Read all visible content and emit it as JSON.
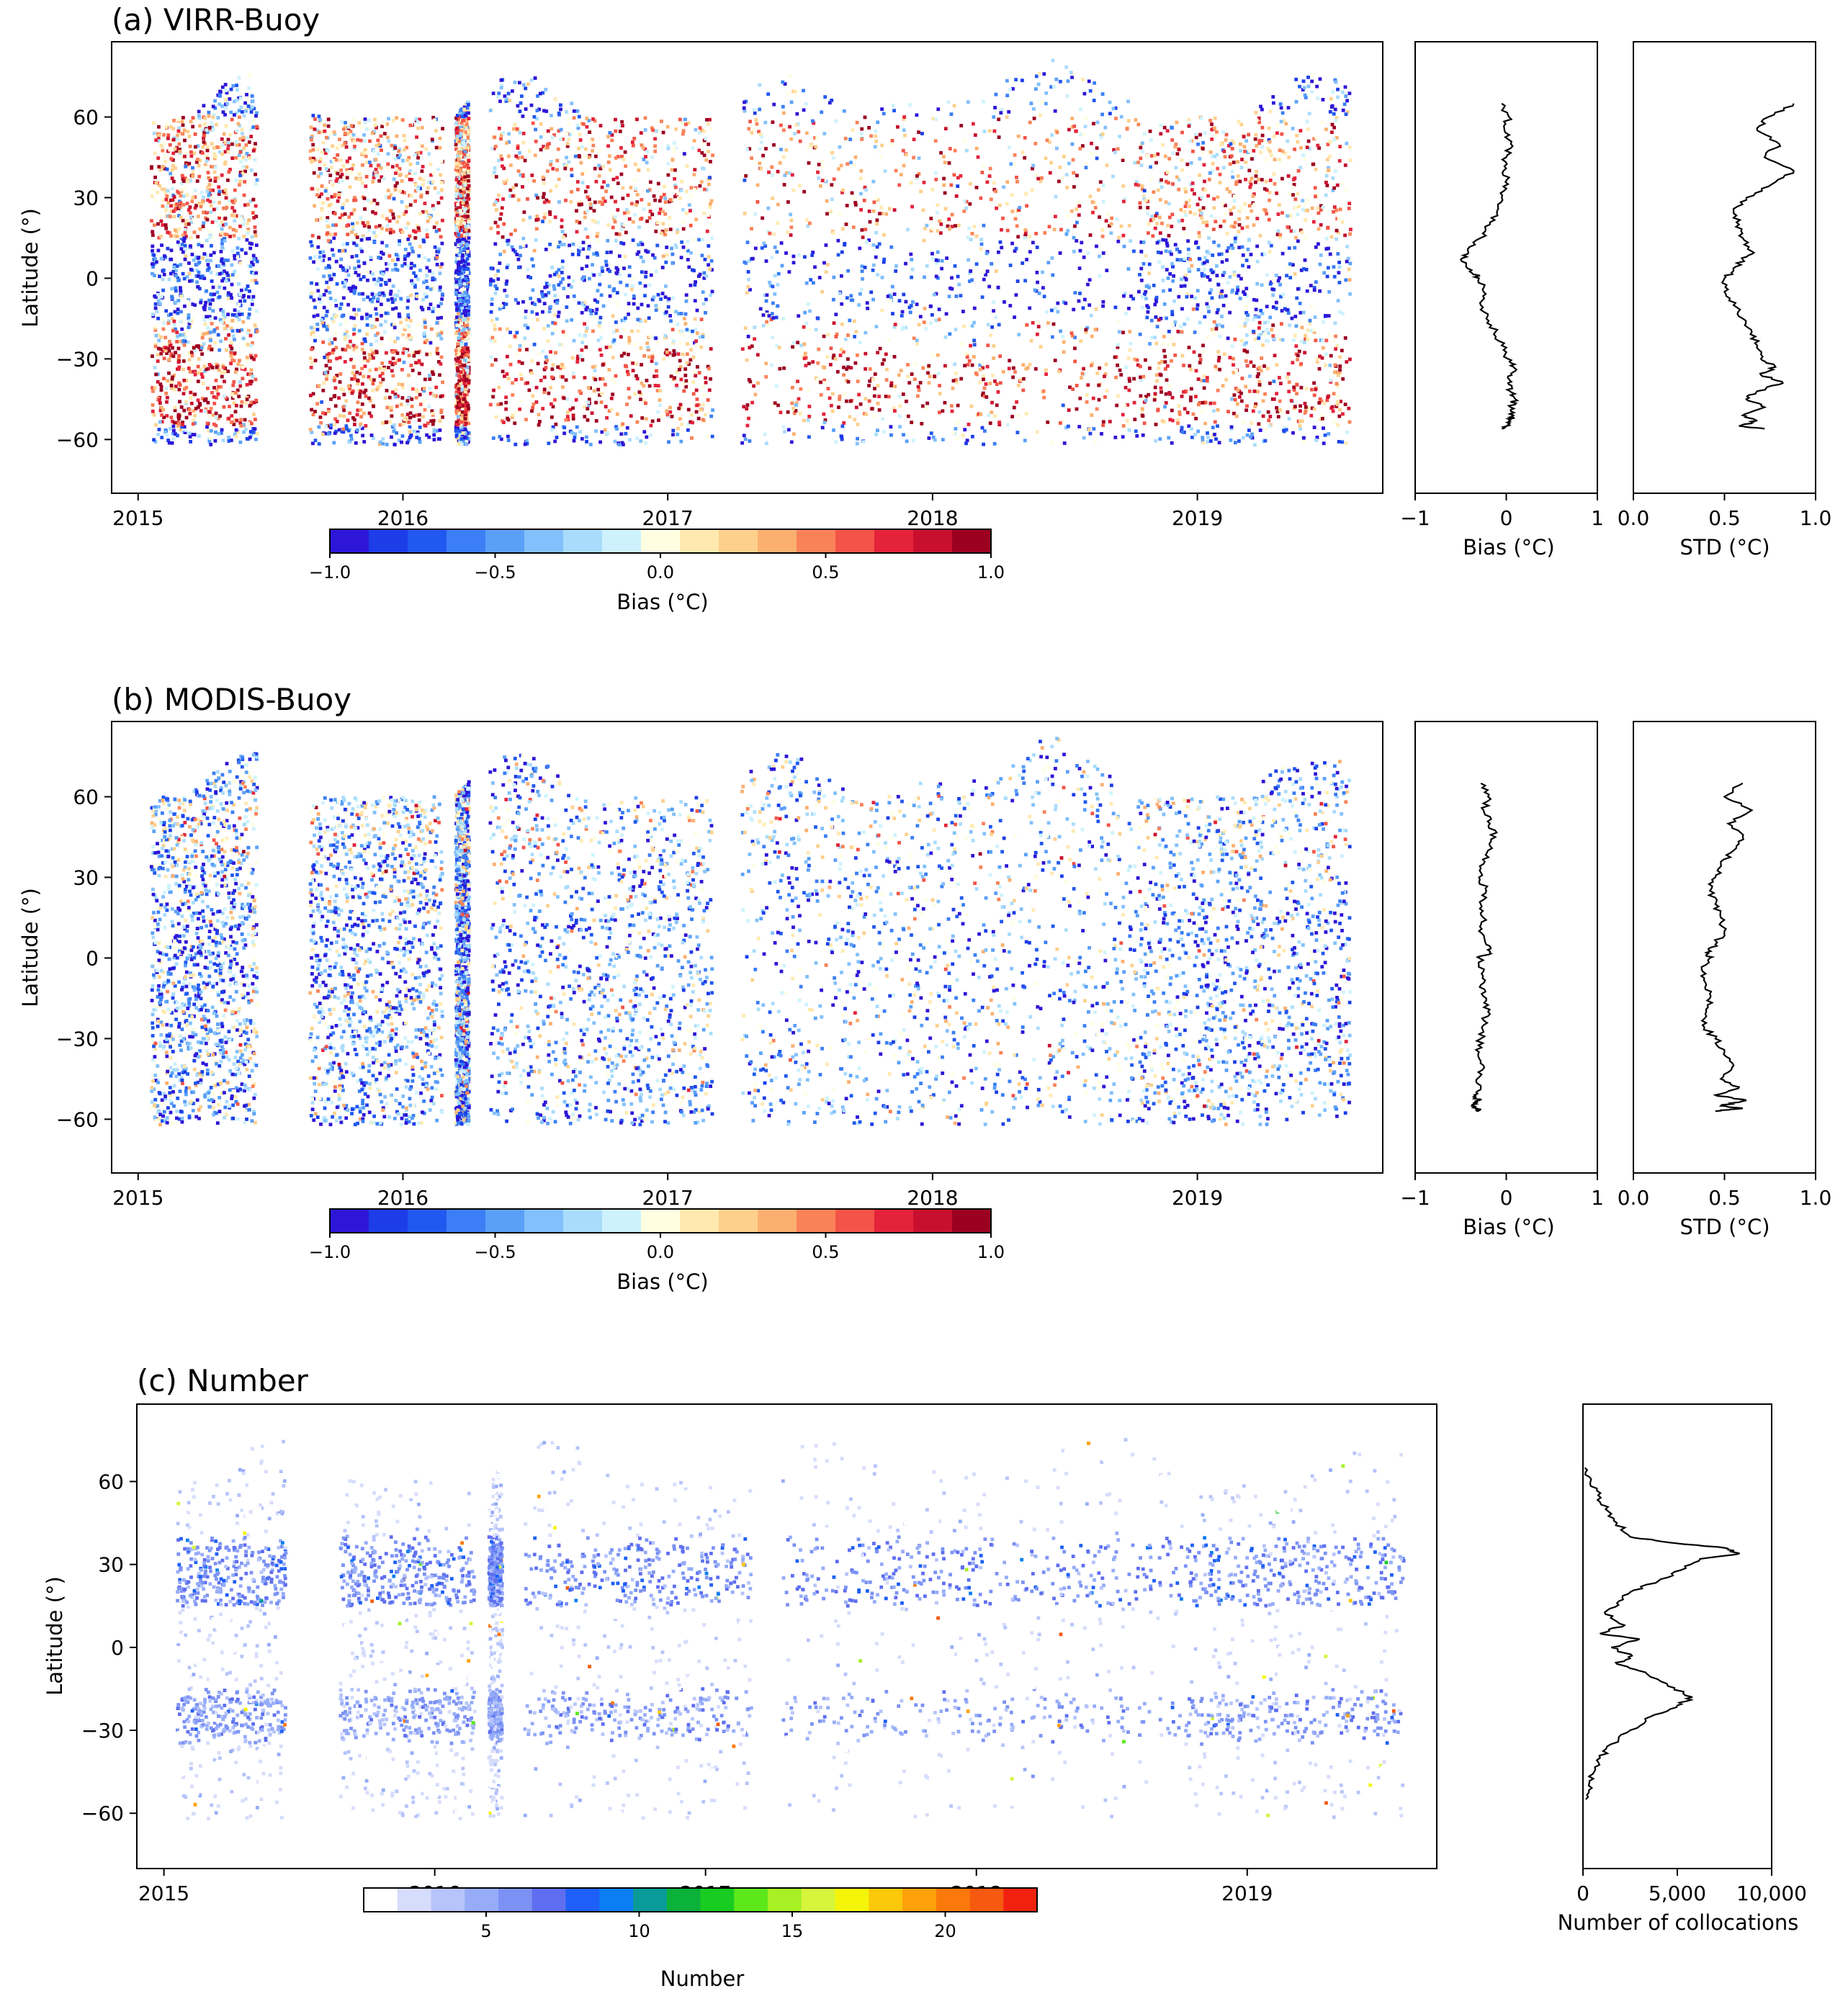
{
  "chart_data": [
    {
      "type": "scatter",
      "panel": "a",
      "title": "(a) VIRR-Buoy",
      "xlabel": "",
      "ylabel": "Latitude (°)",
      "xlim": [
        2014.9,
        2019.7
      ],
      "ylim": [
        -80,
        88
      ],
      "x_ticks": [
        2015,
        2016,
        2017,
        2018,
        2019
      ],
      "x_tick_labels": [
        "2015",
        "2016",
        "2017",
        "2018",
        "2019"
      ],
      "y_ticks": [
        60,
        30,
        0,
        -30,
        -60
      ],
      "y_tick_labels": [
        "60",
        "30",
        "0",
        "−30",
        "−60"
      ],
      "colorbar": {
        "label": "Bias (°C)",
        "range": [
          -1.0,
          1.0
        ],
        "ticks": [
          -1.0,
          -0.5,
          0.0,
          0.5,
          1.0
        ],
        "tick_labels": [
          "−1.0",
          "−0.5",
          "0.0",
          "0.5",
          "1.0"
        ],
        "colors": [
          "#2d16d8",
          "#1c3de8",
          "#2158ef",
          "#3b7ef5",
          "#5aa0f8",
          "#82c0fb",
          "#a9dcfc",
          "#cdf2fd",
          "#fffee2",
          "#ffe9ae",
          "#fdd08c",
          "#fbb070",
          "#f98258",
          "#f35447",
          "#e4233a",
          "#c8102e",
          "#9c0020"
        ]
      },
      "data_extent": {
        "coverage_periods": [
          [
            2015.05,
            2015.45
          ],
          [
            2015.65,
            2016.15
          ],
          [
            2016.2,
            2016.25
          ],
          [
            2016.33,
            2017.17
          ],
          [
            2017.28,
            2018.78
          ],
          [
            2018.78,
            2019.58
          ]
        ],
        "lat_range": [
          -62,
          80
        ],
        "bias_by_band": [
          {
            "lat": [
              40,
              60
            ],
            "bias": 0.3
          },
          {
            "lat": [
              15,
              40
            ],
            "bias": 0.4
          },
          {
            "lat": [
              -15,
              15
            ],
            "bias": -0.7
          },
          {
            "lat": [
              -25,
              -15
            ],
            "bias": 0.0
          },
          {
            "lat": [
              -55,
              -25
            ],
            "bias": 0.6
          },
          {
            "lat": [
              60,
              80
            ],
            "bias": -0.6
          }
        ]
      }
    },
    {
      "type": "line",
      "panel": "a-bias",
      "xlabel": "Bias (°C)",
      "xlim": [
        -1,
        1
      ],
      "x_ticks": [
        -1,
        0,
        1
      ],
      "x_tick_labels": [
        "−1",
        "0",
        "1"
      ],
      "ylim": [
        -80,
        88
      ],
      "x": [
        -0.05,
        0.03,
        -0.02,
        0.05,
        0.0,
        -0.03,
        0.02,
        -0.05,
        -0.1,
        -0.18,
        -0.28,
        -0.42,
        -0.5,
        -0.38,
        -0.3,
        -0.25,
        -0.28,
        -0.22,
        -0.12,
        -0.05,
        0.02,
        0.08,
        0.06,
        0.02,
        0.04,
        0.1,
        0.05,
        0.08,
        0.03,
        0.0,
        -0.05
      ],
      "y": [
        65,
        60,
        55,
        50,
        45,
        40,
        35,
        30,
        25,
        20,
        15,
        10,
        7,
        3,
        0,
        -5,
        -10,
        -15,
        -20,
        -25,
        -30,
        -33,
        -36,
        -39,
        -42,
        -45,
        -48,
        -51,
        -53,
        -55,
        -56
      ]
    },
    {
      "type": "line",
      "panel": "a-std",
      "xlabel": "STD (°C)",
      "xlim": [
        0,
        1
      ],
      "x_ticks": [
        0.0,
        0.5,
        1.0
      ],
      "x_tick_labels": [
        "0.0",
        "0.5",
        "1.0"
      ],
      "ylim": [
        -80,
        88
      ],
      "x": [
        0.88,
        0.74,
        0.68,
        0.8,
        0.72,
        0.88,
        0.76,
        0.62,
        0.55,
        0.58,
        0.6,
        0.65,
        0.6,
        0.55,
        0.5,
        0.5,
        0.55,
        0.6,
        0.65,
        0.68,
        0.7,
        0.78,
        0.7,
        0.82,
        0.68,
        0.62,
        0.72,
        0.6,
        0.68,
        0.58,
        0.72
      ],
      "y": [
        65,
        60,
        55,
        50,
        45,
        40,
        35,
        30,
        25,
        20,
        15,
        10,
        7,
        3,
        0,
        -5,
        -10,
        -15,
        -20,
        -25,
        -30,
        -33,
        -36,
        -39,
        -42,
        -45,
        -48,
        -51,
        -53,
        -55,
        -56
      ]
    },
    {
      "type": "scatter",
      "panel": "b",
      "title": "(b) MODIS-Buoy",
      "xlabel": "",
      "ylabel": "Latitude (°)",
      "xlim": [
        2014.9,
        2019.7
      ],
      "ylim": [
        -80,
        88
      ],
      "x_ticks": [
        2015,
        2016,
        2017,
        2018,
        2019
      ],
      "x_tick_labels": [
        "2015",
        "2016",
        "2017",
        "2018",
        "2019"
      ],
      "y_ticks": [
        60,
        30,
        0,
        -30,
        -60
      ],
      "y_tick_labels": [
        "60",
        "30",
        "0",
        "−30",
        "−60"
      ],
      "colorbar": {
        "label": "Bias (°C)",
        "range": [
          -1.0,
          1.0
        ],
        "ticks": [
          -1.0,
          -0.5,
          0.0,
          0.5,
          1.0
        ],
        "tick_labels": [
          "−1.0",
          "−0.5",
          "0.0",
          "0.5",
          "1.0"
        ],
        "colors": [
          "#2d16d8",
          "#1c3de8",
          "#2158ef",
          "#3b7ef5",
          "#5aa0f8",
          "#82c0fb",
          "#a9dcfc",
          "#cdf2fd",
          "#fffee2",
          "#ffe9ae",
          "#fdd08c",
          "#fbb070",
          "#f98258",
          "#f35447",
          "#e4233a",
          "#c8102e",
          "#9c0020"
        ]
      },
      "data_extent": {
        "coverage_periods": [
          [
            2015.05,
            2015.45
          ],
          [
            2015.65,
            2016.15
          ],
          [
            2016.2,
            2016.25
          ],
          [
            2016.33,
            2017.17
          ],
          [
            2017.28,
            2018.78
          ],
          [
            2018.78,
            2019.58
          ]
        ],
        "lat_range": [
          -62,
          80
        ],
        "bias_by_band": [
          {
            "lat": [
              40,
              60
            ],
            "bias": -0.2
          },
          {
            "lat": [
              15,
              40
            ],
            "bias": -0.4
          },
          {
            "lat": [
              -15,
              15
            ],
            "bias": -0.5
          },
          {
            "lat": [
              -55,
              -15
            ],
            "bias": -0.35
          },
          {
            "lat": [
              60,
              80
            ],
            "bias": -0.5
          }
        ]
      }
    },
    {
      "type": "line",
      "panel": "b-bias",
      "xlabel": "Bias (°C)",
      "xlim": [
        -1,
        1
      ],
      "x_ticks": [
        -1,
        0,
        1
      ],
      "x_tick_labels": [
        "−1",
        "0",
        "1"
      ],
      "ylim": [
        -80,
        88
      ],
      "x": [
        -0.28,
        -0.2,
        -0.25,
        -0.18,
        -0.12,
        -0.2,
        -0.25,
        -0.3,
        -0.22,
        -0.28,
        -0.25,
        -0.3,
        -0.22,
        -0.18,
        -0.3,
        -0.25,
        -0.28,
        -0.22,
        -0.2,
        -0.25,
        -0.28,
        -0.3,
        -0.25,
        -0.32,
        -0.28,
        -0.35,
        -0.3,
        -0.38,
        -0.32,
        -0.3
      ],
      "y": [
        65,
        60,
        55,
        50,
        45,
        40,
        35,
        30,
        25,
        20,
        15,
        10,
        5,
        2,
        0,
        -5,
        -10,
        -15,
        -20,
        -25,
        -30,
        -35,
        -40,
        -45,
        -48,
        -51,
        -53,
        -55,
        -56,
        -57
      ]
    },
    {
      "type": "line",
      "panel": "b-std",
      "xlabel": "STD (°C)",
      "xlim": [
        0,
        1
      ],
      "x_ticks": [
        0.0,
        0.5,
        1.0
      ],
      "x_tick_labels": [
        "0.0",
        "0.5",
        "1.0"
      ],
      "ylim": [
        -80,
        88
      ],
      "x": [
        0.6,
        0.5,
        0.65,
        0.52,
        0.6,
        0.55,
        0.48,
        0.45,
        0.42,
        0.45,
        0.48,
        0.5,
        0.45,
        0.4,
        0.42,
        0.38,
        0.4,
        0.42,
        0.4,
        0.38,
        0.45,
        0.5,
        0.55,
        0.48,
        0.58,
        0.45,
        0.62,
        0.48,
        0.6,
        0.45
      ],
      "y": [
        65,
        60,
        55,
        50,
        45,
        40,
        35,
        30,
        25,
        20,
        15,
        10,
        5,
        2,
        0,
        -5,
        -10,
        -15,
        -20,
        -25,
        -30,
        -35,
        -40,
        -45,
        -48,
        -51,
        -53,
        -55,
        -56,
        -57
      ]
    },
    {
      "type": "scatter",
      "panel": "c",
      "title": "(c) Number",
      "xlabel": "",
      "ylabel": "Latitude (°)",
      "xlim": [
        2014.9,
        2019.7
      ],
      "ylim": [
        -80,
        88
      ],
      "x_ticks": [
        2015,
        2016,
        2017,
        2018,
        2019
      ],
      "x_tick_labels": [
        "2015",
        "2016",
        "2017",
        "2018",
        "2019"
      ],
      "y_ticks": [
        60,
        30,
        0,
        -30,
        -60
      ],
      "y_tick_labels": [
        "60",
        "30",
        "0",
        "−30",
        "−60"
      ],
      "colorbar": {
        "label": "Number",
        "range": [
          1,
          23
        ],
        "ticks": [
          5,
          10,
          15,
          20
        ],
        "tick_labels": [
          "5",
          "10",
          "15",
          "20"
        ],
        "colors": [
          "#ffffff",
          "#d6dcfb",
          "#b6c4fa",
          "#96acf8",
          "#7b92f4",
          "#5f6ef0",
          "#1e60f7",
          "#0a7ef2",
          "#099a9a",
          "#0ab23a",
          "#18cc22",
          "#5de81b",
          "#a6f023",
          "#d6f53c",
          "#f5f50a",
          "#fcc80a",
          "#fda10a",
          "#fb790a",
          "#f55a10",
          "#f0220d"
        ]
      },
      "data_extent": {
        "coverage_periods": [
          [
            2015.05,
            2015.45
          ],
          [
            2015.65,
            2016.15
          ],
          [
            2016.2,
            2016.25
          ],
          [
            2016.33,
            2017.17
          ],
          [
            2017.28,
            2018.78
          ],
          [
            2018.78,
            2019.58
          ]
        ],
        "lat_range": [
          -62,
          80
        ],
        "density_by_band": [
          {
            "lat": [
              15,
              40
            ],
            "count": 6
          },
          {
            "lat": [
              -35,
              -15
            ],
            "count": 5
          },
          {
            "lat": [
              -10,
              10
            ],
            "count": 2
          },
          {
            "lat": [
              40,
              80
            ],
            "count": 2
          },
          {
            "lat": [
              -60,
              -35
            ],
            "count": 2
          }
        ]
      }
    },
    {
      "type": "line",
      "panel": "c-count",
      "xlabel": "Number of collocations",
      "xlim": [
        0,
        10000
      ],
      "x_ticks": [
        0,
        5000,
        10000
      ],
      "x_tick_labels": [
        "0",
        "5,000",
        "10,000"
      ],
      "ylim": [
        -80,
        88
      ],
      "x": [
        100,
        400,
        800,
        1200,
        1800,
        2500,
        4500,
        7500,
        8300,
        6200,
        5200,
        4000,
        2500,
        1800,
        1200,
        2200,
        900,
        3000,
        1500,
        2600,
        1800,
        3300,
        4500,
        5800,
        5000,
        3600,
        2500,
        1500,
        900,
        600,
        300,
        150
      ],
      "y": [
        65,
        60,
        55,
        50,
        45,
        40,
        38,
        36,
        34,
        32,
        28,
        24,
        20,
        16,
        12,
        8,
        5,
        3,
        0,
        -3,
        -6,
        -9,
        -14,
        -18,
        -21,
        -25,
        -30,
        -35,
        -40,
        -45,
        -50,
        -55
      ]
    }
  ]
}
